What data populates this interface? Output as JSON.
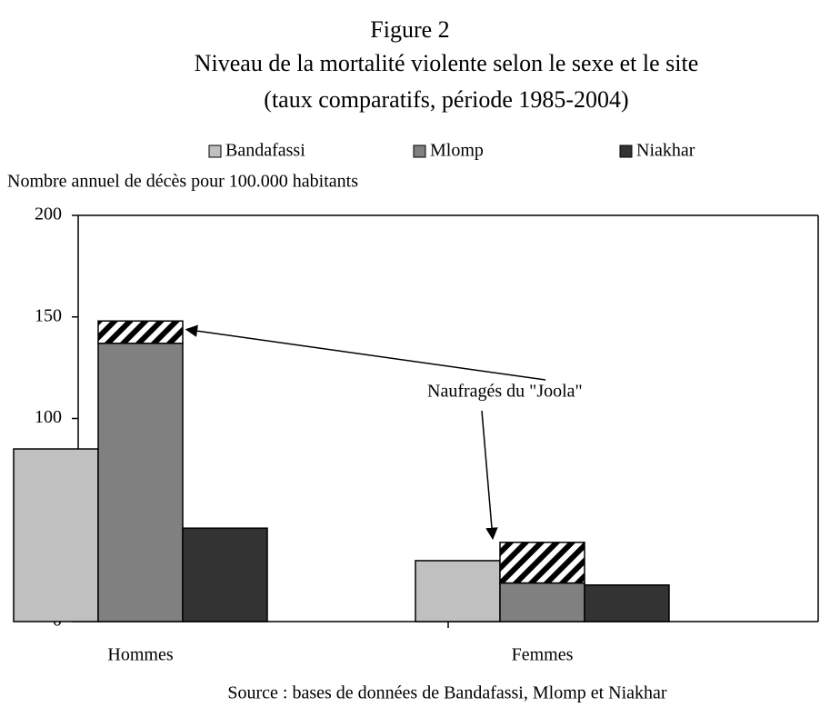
{
  "chart_data": {
    "type": "bar",
    "title": "Figure 2",
    "subtitle": "Niveau de la mortalité violente selon le sexe et le site",
    "subtitle2": "(taux comparatifs, période 1985-2004)",
    "y_label": "Nombre annuel de décès pour 100.000 habitants",
    "source": "Source : bases de données de Bandafassi, Mlomp et Niakhar",
    "categories": [
      "Hommes",
      "Femmes"
    ],
    "series": [
      {
        "name": "Bandafassi",
        "color": "#c0c0c0",
        "values": [
          85,
          30
        ]
      },
      {
        "name": "Mlomp",
        "color": "#808080",
        "values": [
          137,
          19
        ]
      },
      {
        "name": "Niakhar",
        "color": "#333333",
        "values": [
          46,
          18
        ]
      },
      {
        "name": "Naufragés du \"Joola\"",
        "color": "#000000",
        "pattern": "hatch",
        "stack_on": 1,
        "legend": false,
        "values": [
          11,
          20
        ]
      }
    ],
    "ylim": [
      0,
      200
    ],
    "yticks": [
      0,
      50,
      100,
      150,
      200
    ],
    "legend": "top"
  }
}
